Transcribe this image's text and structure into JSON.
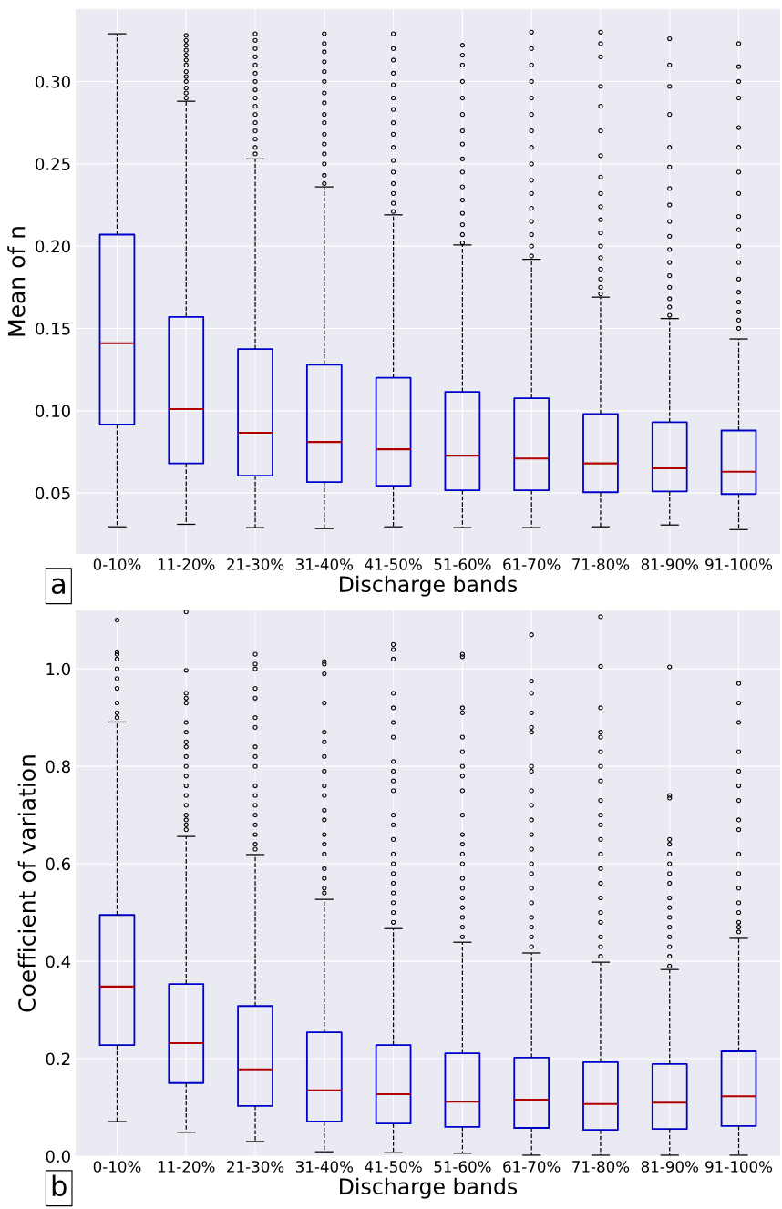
{
  "chart_data": [
    {
      "type": "box",
      "xlabel": "Discharge bands",
      "ylabel": "Mean of n",
      "annotations": [
        "a"
      ],
      "grid": true,
      "color": "#0000cc",
      "categories": [
        "0-10%",
        "11-20%",
        "21-30%",
        "31-40%",
        "41-50%",
        "51-60%",
        "61-70%",
        "71-80%",
        "81-90%",
        "91-100%"
      ],
      "ylim": [
        0.013,
        0.344
      ],
      "yticks": [
        {
          "value": 0.05,
          "label": "0.05"
        },
        {
          "value": 0.1,
          "label": "0.10"
        },
        {
          "value": 0.15,
          "label": "0.15"
        },
        {
          "value": 0.2,
          "label": "0.20"
        },
        {
          "value": 0.25,
          "label": "0.25"
        },
        {
          "value": 0.3,
          "label": "0.30"
        }
      ],
      "boxes": [
        {
          "low": 0.0295,
          "q1": 0.0916,
          "median": 0.141,
          "q3": 0.207,
          "high": 0.329
        },
        {
          "low": 0.031,
          "q1": 0.068,
          "median": 0.101,
          "q3": 0.157,
          "high": 0.288,
          "outliers": [
            0.29,
            0.293,
            0.296,
            0.3,
            0.303,
            0.306,
            0.31,
            0.313,
            0.316,
            0.319,
            0.322,
            0.325,
            0.328
          ]
        },
        {
          "low": 0.029,
          "q1": 0.0605,
          "median": 0.0866,
          "q3": 0.1375,
          "high": 0.253,
          "outliers": [
            0.256,
            0.26,
            0.265,
            0.27,
            0.275,
            0.28,
            0.285,
            0.29,
            0.295,
            0.3,
            0.305,
            0.31,
            0.315,
            0.32,
            0.325,
            0.329
          ]
        },
        {
          "low": 0.0284,
          "q1": 0.0567,
          "median": 0.081,
          "q3": 0.128,
          "high": 0.236,
          "outliers": [
            0.238,
            0.243,
            0.25,
            0.256,
            0.262,
            0.268,
            0.275,
            0.28,
            0.287,
            0.293,
            0.3,
            0.306,
            0.312,
            0.318,
            0.323,
            0.329
          ]
        },
        {
          "low": 0.0295,
          "q1": 0.0544,
          "median": 0.0766,
          "q3": 0.12,
          "high": 0.219,
          "outliers": [
            0.221,
            0.226,
            0.232,
            0.238,
            0.245,
            0.252,
            0.26,
            0.268,
            0.275,
            0.283,
            0.29,
            0.298,
            0.305,
            0.313,
            0.32,
            0.329
          ]
        },
        {
          "low": 0.029,
          "q1": 0.0517,
          "median": 0.0727,
          "q3": 0.1115,
          "high": 0.2007,
          "outliers": [
            0.202,
            0.207,
            0.213,
            0.22,
            0.228,
            0.236,
            0.245,
            0.253,
            0.262,
            0.27,
            0.28,
            0.29,
            0.3,
            0.31,
            0.316,
            0.322
          ]
        },
        {
          "low": 0.029,
          "q1": 0.0517,
          "median": 0.071,
          "q3": 0.1076,
          "high": 0.192,
          "outliers": [
            0.194,
            0.2,
            0.207,
            0.215,
            0.223,
            0.232,
            0.24,
            0.25,
            0.26,
            0.27,
            0.28,
            0.29,
            0.3,
            0.31,
            0.32,
            0.33
          ]
        },
        {
          "low": 0.0295,
          "q1": 0.0505,
          "median": 0.068,
          "q3": 0.098,
          "high": 0.169,
          "outliers": [
            0.171,
            0.175,
            0.18,
            0.186,
            0.193,
            0.2,
            0.208,
            0.216,
            0.224,
            0.232,
            0.242,
            0.255,
            0.27,
            0.285,
            0.297,
            0.315,
            0.323,
            0.33
          ]
        },
        {
          "low": 0.0306,
          "q1": 0.051,
          "median": 0.065,
          "q3": 0.093,
          "high": 0.156,
          "outliers": [
            0.158,
            0.163,
            0.168,
            0.175,
            0.182,
            0.19,
            0.198,
            0.206,
            0.215,
            0.225,
            0.235,
            0.248,
            0.26,
            0.28,
            0.297,
            0.31,
            0.326
          ]
        },
        {
          "low": 0.0278,
          "q1": 0.0494,
          "median": 0.063,
          "q3": 0.088,
          "high": 0.1436,
          "outliers": [
            0.15,
            0.155,
            0.16,
            0.166,
            0.172,
            0.18,
            0.19,
            0.2,
            0.21,
            0.218,
            0.232,
            0.245,
            0.26,
            0.272,
            0.29,
            0.3,
            0.309,
            0.323
          ]
        }
      ]
    },
    {
      "type": "box",
      "xlabel": "Discharge bands",
      "ylabel": "Coefficient of variation",
      "annotations": [
        "b"
      ],
      "grid": true,
      "color": "#0000cc",
      "categories": [
        "0-10%",
        "11-20%",
        "21-30%",
        "31-40%",
        "41-50%",
        "51-60%",
        "61-70%",
        "71-80%",
        "81-90%",
        "91-100%"
      ],
      "ylim": [
        0,
        1.12
      ],
      "yticks": [
        {
          "value": 0,
          "label": "0.0"
        },
        {
          "value": 0.2,
          "label": "0.2"
        },
        {
          "value": 0.4,
          "label": "0.4"
        },
        {
          "value": 0.6,
          "label": "0.6"
        },
        {
          "value": 0.8,
          "label": "0.8"
        },
        {
          "value": 1.0,
          "label": "1.0"
        }
      ],
      "boxes": [
        {
          "low": 0.071,
          "q1": 0.228,
          "median": 0.348,
          "q3": 0.495,
          "high": 0.891,
          "outliers": [
            0.9,
            0.91,
            0.93,
            0.96,
            0.98,
            1.0,
            1.02,
            1.03,
            1.035,
            1.1
          ]
        },
        {
          "low": 0.049,
          "q1": 0.15,
          "median": 0.232,
          "q3": 0.353,
          "high": 0.656,
          "outliers": [
            0.67,
            0.68,
            0.69,
            0.7,
            0.72,
            0.74,
            0.76,
            0.78,
            0.8,
            0.82,
            0.84,
            0.85,
            0.87,
            0.89,
            0.93,
            0.94,
            0.95,
            0.997,
            1.117
          ]
        },
        {
          "low": 0.03,
          "q1": 0.103,
          "median": 0.178,
          "q3": 0.308,
          "high": 0.619,
          "outliers": [
            0.63,
            0.64,
            0.66,
            0.68,
            0.7,
            0.72,
            0.74,
            0.76,
            0.8,
            0.82,
            0.84,
            0.88,
            0.9,
            0.94,
            0.96,
            1.0,
            1.01,
            1.03
          ]
        },
        {
          "low": 0.009,
          "q1": 0.071,
          "median": 0.135,
          "q3": 0.254,
          "high": 0.527,
          "outliers": [
            0.54,
            0.55,
            0.57,
            0.59,
            0.62,
            0.64,
            0.66,
            0.69,
            0.71,
            0.74,
            0.76,
            0.79,
            0.82,
            0.85,
            0.87,
            0.93,
            0.99,
            1.01,
            1.015
          ]
        },
        {
          "low": 0.007,
          "q1": 0.067,
          "median": 0.127,
          "q3": 0.228,
          "high": 0.467,
          "outliers": [
            0.48,
            0.5,
            0.52,
            0.54,
            0.56,
            0.58,
            0.6,
            0.62,
            0.65,
            0.68,
            0.7,
            0.75,
            0.77,
            0.79,
            0.81,
            0.86,
            0.89,
            0.92,
            0.95,
            1.02,
            1.04,
            1.05
          ]
        },
        {
          "low": 0.006,
          "q1": 0.06,
          "median": 0.112,
          "q3": 0.211,
          "high": 0.439,
          "outliers": [
            0.45,
            0.47,
            0.49,
            0.51,
            0.53,
            0.55,
            0.57,
            0.6,
            0.62,
            0.64,
            0.66,
            0.7,
            0.75,
            0.78,
            0.8,
            0.83,
            0.86,
            0.91,
            0.92,
            1.025,
            1.03
          ]
        },
        {
          "low": 0.002,
          "q1": 0.058,
          "median": 0.116,
          "q3": 0.202,
          "high": 0.417,
          "outliers": [
            0.43,
            0.45,
            0.47,
            0.49,
            0.52,
            0.55,
            0.58,
            0.6,
            0.63,
            0.66,
            0.69,
            0.72,
            0.75,
            0.79,
            0.8,
            0.87,
            0.88,
            0.91,
            0.95,
            0.975,
            1.07
          ]
        },
        {
          "low": 0.002,
          "q1": 0.054,
          "median": 0.107,
          "q3": 0.193,
          "high": 0.398,
          "outliers": [
            0.41,
            0.43,
            0.45,
            0.48,
            0.5,
            0.53,
            0.56,
            0.59,
            0.62,
            0.65,
            0.68,
            0.7,
            0.73,
            0.77,
            0.8,
            0.83,
            0.86,
            0.87,
            0.92,
            1.005,
            1.107
          ]
        },
        {
          "low": 0.002,
          "q1": 0.056,
          "median": 0.11,
          "q3": 0.189,
          "high": 0.383,
          "outliers": [
            0.39,
            0.41,
            0.43,
            0.45,
            0.47,
            0.49,
            0.51,
            0.53,
            0.56,
            0.58,
            0.6,
            0.62,
            0.64,
            0.65,
            0.735,
            0.74,
            1.004
          ]
        },
        {
          "low": 0.002,
          "q1": 0.062,
          "median": 0.123,
          "q3": 0.215,
          "high": 0.447,
          "outliers": [
            0.46,
            0.47,
            0.48,
            0.5,
            0.52,
            0.55,
            0.58,
            0.62,
            0.67,
            0.69,
            0.73,
            0.76,
            0.79,
            0.83,
            0.89,
            0.93,
            0.97
          ]
        }
      ]
    }
  ]
}
